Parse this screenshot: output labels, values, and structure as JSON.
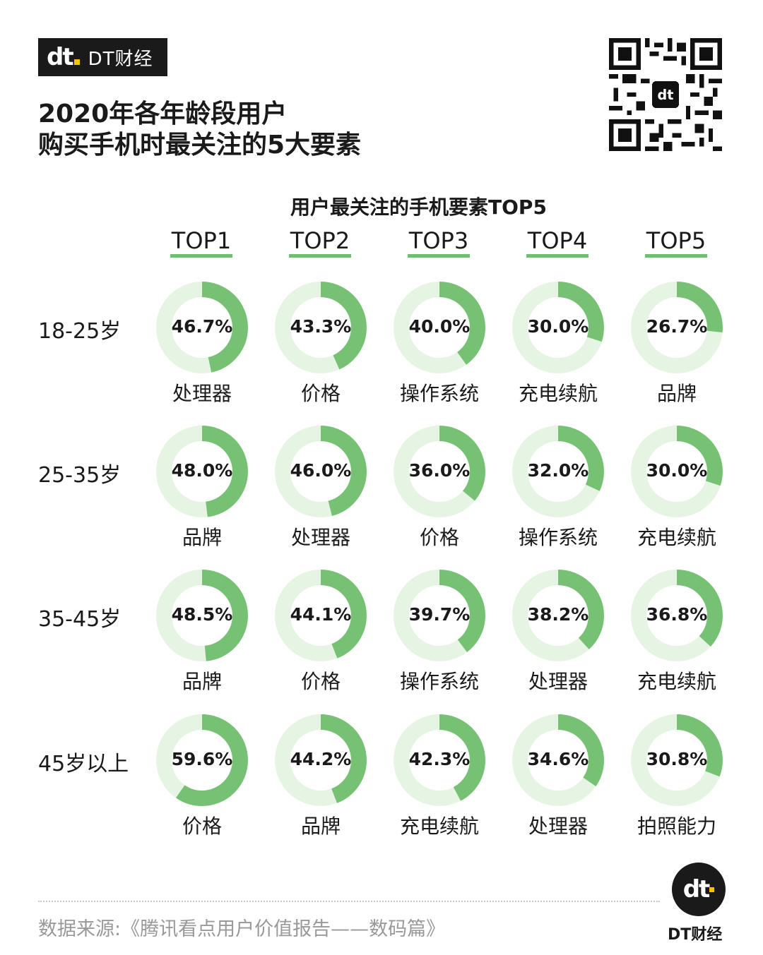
{
  "brand": {
    "mark": "dt",
    "name": "DT财经"
  },
  "title_lines": [
    "2020年各年龄段用户",
    "购买手机时最关注的5大要素"
  ],
  "chart_data": {
    "type": "pie",
    "title": "用户最关注的手机要素TOP5",
    "columns": [
      "TOP1",
      "TOP2",
      "TOP3",
      "TOP4",
      "TOP5"
    ],
    "rows": [
      {
        "group": "18-25岁",
        "items": [
          {
            "value": 46.7,
            "label": "46.7%",
            "factor": "处理器"
          },
          {
            "value": 43.3,
            "label": "43.3%",
            "factor": "价格"
          },
          {
            "value": 40.0,
            "label": "40.0%",
            "factor": "操作系统"
          },
          {
            "value": 30.0,
            "label": "30.0%",
            "factor": "充电续航"
          },
          {
            "value": 26.7,
            "label": "26.7%",
            "factor": "品牌"
          }
        ]
      },
      {
        "group": "25-35岁",
        "items": [
          {
            "value": 48.0,
            "label": "48.0%",
            "factor": "品牌"
          },
          {
            "value": 46.0,
            "label": "46.0%",
            "factor": "处理器"
          },
          {
            "value": 36.0,
            "label": "36.0%",
            "factor": "价格"
          },
          {
            "value": 32.0,
            "label": "32.0%",
            "factor": "操作系统"
          },
          {
            "value": 30.0,
            "label": "30.0%",
            "factor": "充电续航"
          }
        ]
      },
      {
        "group": "35-45岁",
        "items": [
          {
            "value": 48.5,
            "label": "48.5%",
            "factor": "品牌"
          },
          {
            "value": 44.1,
            "label": "44.1%",
            "factor": "价格"
          },
          {
            "value": 39.7,
            "label": "39.7%",
            "factor": "操作系统"
          },
          {
            "value": 38.2,
            "label": "38.2%",
            "factor": "处理器"
          },
          {
            "value": 36.8,
            "label": "36.8%",
            "factor": "充电续航"
          }
        ]
      },
      {
        "group": "45岁以上",
        "items": [
          {
            "value": 59.6,
            "label": "59.6%",
            "factor": "价格"
          },
          {
            "value": 44.2,
            "label": "44.2%",
            "factor": "品牌"
          },
          {
            "value": 42.3,
            "label": "42.3%",
            "factor": "充电续航"
          },
          {
            "value": 34.6,
            "label": "34.6%",
            "factor": "处理器"
          },
          {
            "value": 30.8,
            "label": "30.8%",
            "factor": "拍照能力"
          }
        ]
      }
    ],
    "colors": {
      "filled": "#76c173",
      "track": "#e6f4e3",
      "underline": "#6cc070"
    }
  },
  "footer": {
    "source": "数据来源:《腾讯看点用户价值报告——数码篇》",
    "logo_mark": "dt",
    "logo_text": "DT财经"
  },
  "icons": {
    "qr": "qr-code-icon"
  }
}
